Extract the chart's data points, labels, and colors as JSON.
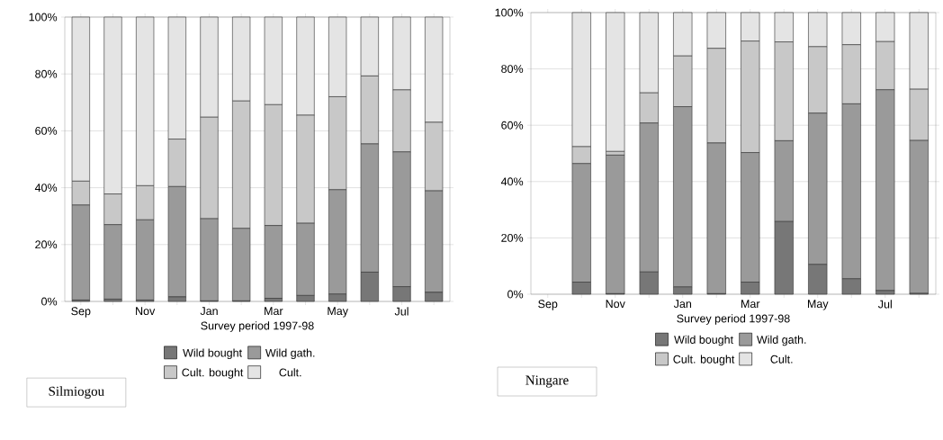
{
  "chart_data": [
    {
      "type": "bar",
      "stacked": true,
      "xlabel": "Survey period 1997-98",
      "legend_title": "Silmiogou",
      "legend": "bottom",
      "grid": "y",
      "categories": [
        "Sep",
        null,
        "Nov",
        null,
        "Jan",
        null,
        "Mar",
        null,
        "May",
        null,
        "Jul",
        null
      ],
      "ylim": [
        0,
        100
      ],
      "yticks": [
        {
          "value": 0,
          "label": "0%"
        },
        {
          "value": 20,
          "label": "20%"
        },
        {
          "value": 40,
          "label": "40%"
        },
        {
          "value": 60,
          "label": "60%"
        },
        {
          "value": 80,
          "label": "80%"
        },
        {
          "value": 100,
          "label": "100%"
        }
      ],
      "series": [
        {
          "name": "Wild bought",
          "color": "#777777",
          "values": [
            0.5,
            0.8,
            0.5,
            1.6,
            0.2,
            0.2,
            1.1,
            2.1,
            2.6,
            10.3,
            5.2,
            3.2
          ]
        },
        {
          "name": "Wild gath.",
          "color": "#9a9a9a",
          "values": [
            33.4,
            26.2,
            28.2,
            38.8,
            28.9,
            25.5,
            25.6,
            25.4,
            36.7,
            45.1,
            47.4,
            35.7
          ]
        },
        {
          "name": "Cult. bought",
          "color": "#c8c8c8",
          "values": [
            8.4,
            10.8,
            12.0,
            16.7,
            35.7,
            44.8,
            42.5,
            38.0,
            32.7,
            23.9,
            21.8,
            24.1
          ]
        },
        {
          "name": "Cult.",
          "color": "#e4e4e4",
          "values": [
            57.7,
            62.2,
            59.3,
            42.9,
            35.2,
            29.5,
            30.8,
            34.5,
            28.0,
            20.7,
            25.6,
            37.0
          ]
        }
      ]
    },
    {
      "type": "bar",
      "stacked": true,
      "xlabel": "Survey period 1997-98",
      "legend_title": "Ningare",
      "legend": "bottom",
      "grid": "y",
      "categories": [
        "Sep",
        null,
        "Nov",
        null,
        "Jan",
        null,
        "Mar",
        null,
        "May",
        null,
        "Jul",
        null
      ],
      "ylim": [
        0,
        100
      ],
      "yticks": [
        {
          "value": 0,
          "label": "0%"
        },
        {
          "value": 20,
          "label": "20%"
        },
        {
          "value": 40,
          "label": "40%"
        },
        {
          "value": 60,
          "label": "60%"
        },
        {
          "value": 80,
          "label": "80%"
        },
        {
          "value": 100,
          "label": "100%"
        }
      ],
      "series": [
        {
          "name": "Wild bought",
          "color": "#777777",
          "values": [
            0,
            4.3,
            0.2,
            7.9,
            2.6,
            0.2,
            4.3,
            25.8,
            10.6,
            5.5,
            1.3,
            0.3
          ]
        },
        {
          "name": "Wild gath.",
          "color": "#9a9a9a",
          "values": [
            0,
            42.1,
            49.2,
            52.9,
            64.0,
            53.5,
            46.0,
            28.7,
            53.7,
            62.1,
            71.3,
            54.3
          ]
        },
        {
          "name": "Cult. bought",
          "color": "#c8c8c8",
          "values": [
            0,
            6.0,
            1.3,
            10.7,
            18.0,
            33.6,
            39.6,
            35.1,
            23.6,
            21.0,
            17.1,
            18.2
          ]
        },
        {
          "name": "Cult.",
          "color": "#e4e4e4",
          "values": [
            0,
            47.6,
            49.3,
            28.5,
            15.4,
            12.7,
            10.1,
            10.4,
            12.1,
            11.4,
            10.3,
            27.2
          ]
        }
      ]
    }
  ]
}
